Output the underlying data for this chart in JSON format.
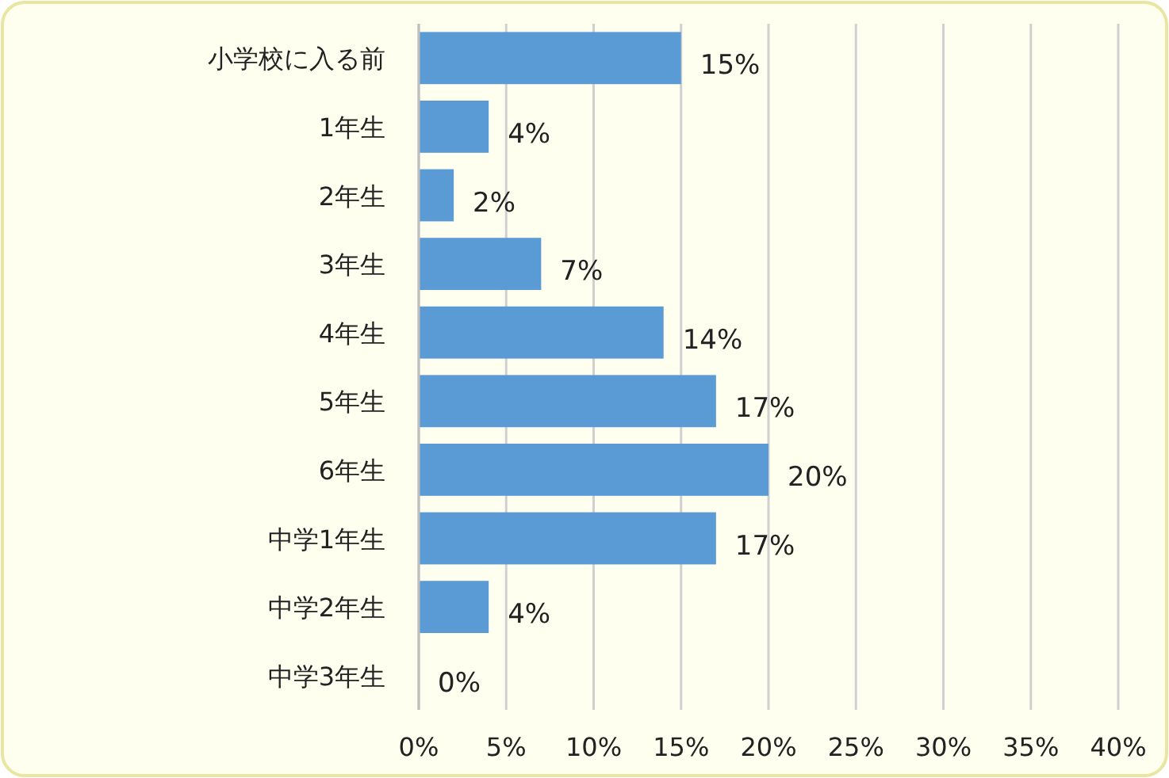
{
  "chart_data": {
    "type": "bar",
    "orientation": "horizontal",
    "categories": [
      "小学校に入る前",
      "1年生",
      "2年生",
      "3年生",
      "4年生",
      "5年生",
      "6年生",
      "中学1年生",
      "中学2年生",
      "中学3年生"
    ],
    "values": [
      15,
      4,
      2,
      7,
      14,
      17,
      20,
      17,
      4,
      0
    ],
    "value_labels": [
      "15%",
      "4%",
      "2%",
      "7%",
      "14%",
      "17%",
      "20%",
      "17%",
      "4%",
      "0%"
    ],
    "color": "#5b9bd5",
    "xlim": [
      0,
      40
    ],
    "xticks": [
      {
        "value": 0,
        "label": "0%"
      },
      {
        "value": 5,
        "label": "5%"
      },
      {
        "value": 10,
        "label": "10%"
      },
      {
        "value": 15,
        "label": "15%"
      },
      {
        "value": 20,
        "label": "20%"
      },
      {
        "value": 25,
        "label": "25%"
      },
      {
        "value": 30,
        "label": "30%"
      },
      {
        "value": 35,
        "label": "35%"
      },
      {
        "value": 40,
        "label": "40%"
      }
    ],
    "grid": "x"
  }
}
